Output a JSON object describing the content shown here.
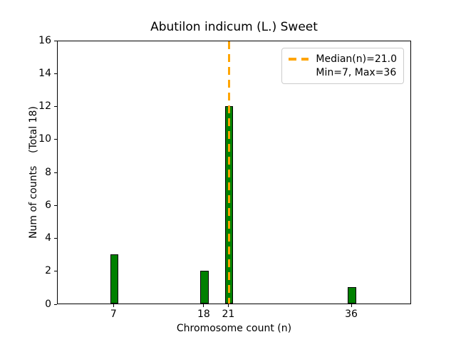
{
  "chart_data": {
    "type": "bar",
    "title": "Abutilon indicum (L.) Sweet",
    "xlabel": "Chromosome count (n)",
    "ylabel": "Num of counts    (Total 18)",
    "total_counts": 18,
    "x": [
      7,
      18,
      21,
      36
    ],
    "values": [
      3,
      2,
      12,
      1
    ],
    "xticks": [
      7,
      18,
      21,
      36
    ],
    "yticks": [
      0,
      2,
      4,
      6,
      8,
      10,
      12,
      14,
      16
    ],
    "xlim": [
      0.1,
      43.3
    ],
    "ylim": [
      0,
      16
    ],
    "bar_width": 1.0,
    "bar_color": "#008000",
    "bar_edge_color": "#000000",
    "median_line": {
      "x": 21.0,
      "color": "#FFA500",
      "style": "dashed"
    },
    "legend": {
      "position": "upper right",
      "entries": [
        {
          "sample": "orange-dashed-line",
          "label": "Median(n)=21.0"
        },
        {
          "sample": "none",
          "label": "Min=7, Max=36"
        }
      ]
    }
  }
}
